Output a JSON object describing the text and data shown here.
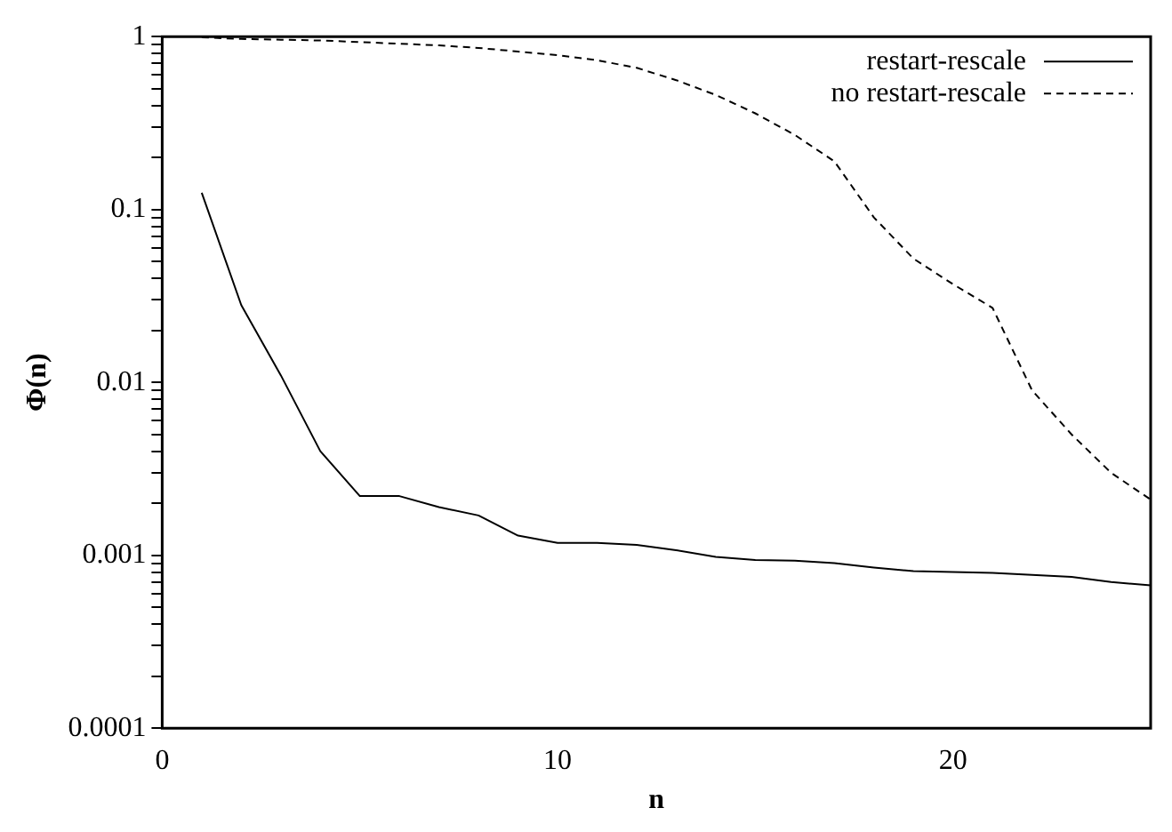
{
  "chart_data": {
    "type": "line",
    "xlabel": "n",
    "ylabel": "Φ(n)",
    "log": "y",
    "xlim": [
      0,
      25
    ],
    "xticks": [
      0,
      10,
      20
    ],
    "ylim": [
      0.0001,
      1
    ],
    "yticks": [
      0.0001,
      {
        "value": 0.0002,
        "label": null
      },
      {
        "value": 0.0003,
        "label": null
      },
      {
        "value": 0.0004,
        "label": null
      },
      {
        "value": 0.0005,
        "label": null
      },
      {
        "value": 0.0006,
        "label": null
      },
      {
        "value": 0.0007,
        "label": null
      },
      {
        "value": 0.0008,
        "label": null
      },
      {
        "value": 0.0009,
        "label": null
      },
      0.001,
      {
        "value": 0.002,
        "label": null
      },
      {
        "value": 0.003,
        "label": null
      },
      {
        "value": 0.004,
        "label": null
      },
      {
        "value": 0.005,
        "label": null
      },
      {
        "value": 0.006,
        "label": null
      },
      {
        "value": 0.007,
        "label": null
      },
      {
        "value": 0.008,
        "label": null
      },
      {
        "value": 0.009,
        "label": null
      },
      0.01,
      {
        "value": 0.02,
        "label": null
      },
      {
        "value": 0.03,
        "label": null
      },
      {
        "value": 0.04,
        "label": null
      },
      {
        "value": 0.05,
        "label": null
      },
      {
        "value": 0.06,
        "label": null
      },
      {
        "value": 0.07,
        "label": null
      },
      {
        "value": 0.08,
        "label": null
      },
      {
        "value": 0.09,
        "label": null
      },
      0.1,
      {
        "value": 0.2,
        "label": null
      },
      {
        "value": 0.3,
        "label": null
      },
      {
        "value": 0.4,
        "label": null
      },
      {
        "value": 0.5,
        "label": null
      },
      {
        "value": 0.6,
        "label": null
      },
      {
        "value": 0.7,
        "label": null
      },
      {
        "value": 0.8,
        "label": null
      },
      {
        "value": 0.9,
        "label": null
      },
      1
    ],
    "grid": false,
    "legend": "top right",
    "marker": "none",
    "series": [
      {
        "name": "restart-rescale",
        "color": "#000000",
        "line_style": "solid",
        "x": [
          1,
          2,
          3,
          4,
          5,
          6,
          7,
          8,
          9,
          10,
          11,
          12,
          13,
          14,
          15,
          16,
          17,
          18,
          19,
          20,
          21,
          22,
          23,
          24,
          25
        ],
        "values": [
          0.125,
          0.028,
          0.011,
          0.004,
          0.0022,
          0.0022,
          0.0019,
          0.0017,
          0.0013,
          0.00118,
          0.00118,
          0.00115,
          0.00107,
          0.00098,
          0.00094,
          0.00093,
          0.0009,
          0.00085,
          0.00081,
          0.0008,
          0.00079,
          0.00077,
          0.00075,
          0.0007,
          0.00067
        ]
      },
      {
        "name": "no restart-rescale",
        "color": "#000000",
        "line_style": "dashed",
        "x": [
          1,
          2,
          3,
          4,
          5,
          6,
          7,
          8,
          9,
          10,
          11,
          12,
          13,
          14,
          15,
          16,
          17,
          18,
          19,
          20,
          21,
          22,
          23,
          24,
          25
        ],
        "values": [
          0.99,
          0.97,
          0.96,
          0.95,
          0.93,
          0.91,
          0.89,
          0.86,
          0.82,
          0.78,
          0.73,
          0.66,
          0.56,
          0.46,
          0.36,
          0.27,
          0.19,
          0.09,
          0.052,
          0.037,
          0.027,
          0.009,
          0.005,
          0.003,
          0.0021
        ]
      }
    ]
  }
}
